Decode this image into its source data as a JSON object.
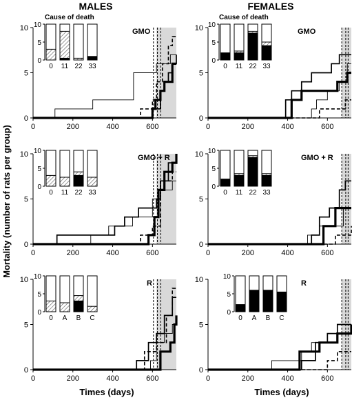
{
  "headers": {
    "males": "MALES",
    "females": "FEMALES"
  },
  "axis": {
    "ylabel": "Mortality (number of rats per group)",
    "xlabel": "Times (days)",
    "xticks": [
      "0",
      "200",
      "400",
      "600"
    ],
    "yticks": [
      "0",
      "5",
      "10"
    ],
    "xlim": [
      0,
      720
    ],
    "ylim": [
      0,
      10
    ]
  },
  "inset_axis": {
    "yticks": [
      "0",
      "5",
      "10"
    ],
    "ylim": [
      0,
      10
    ]
  },
  "chart_data": [
    {
      "id": "males-gmo",
      "type": "line",
      "title": "GMO",
      "inset_title": "Cause of death",
      "shaded_region": [
        620,
        720
      ],
      "vlines": [
        605,
        625,
        642
      ],
      "series": [
        {
          "style": "thin",
          "x": [
            0,
            110,
            300,
            505,
            600,
            620,
            640,
            690,
            720
          ],
          "y": [
            0,
            1,
            2,
            5,
            5,
            6,
            6,
            7,
            7
          ]
        },
        {
          "style": "medium",
          "x": [
            0,
            580,
            600,
            620,
            640,
            660,
            680,
            700,
            720
          ],
          "y": [
            0,
            0,
            1,
            1,
            3,
            4,
            5,
            6,
            7
          ]
        },
        {
          "style": "thick",
          "x": [
            0,
            560,
            600,
            615,
            640,
            660,
            700,
            720
          ],
          "y": [
            0,
            0,
            1,
            2,
            3,
            4,
            6,
            6
          ]
        },
        {
          "style": "dashed",
          "x": [
            0,
            510,
            540,
            600,
            620,
            650,
            680,
            700,
            720
          ],
          "y": [
            0,
            0,
            1,
            2,
            4,
            6,
            8,
            9,
            9
          ]
        }
      ],
      "inset": {
        "categories": [
          "0",
          "11",
          "22",
          "33"
        ],
        "bars": [
          {
            "total": 10,
            "hatched": 3,
            "black": 0
          },
          {
            "total": 10,
            "hatched": 7.5,
            "black": 0.5
          },
          {
            "total": 10,
            "hatched": 0.5,
            "black": 0
          },
          {
            "total": 10,
            "hatched": 0,
            "black": 1
          }
        ]
      }
    },
    {
      "id": "females-gmo",
      "type": "line",
      "title": "GMO",
      "inset_title": "Cause of death",
      "shaded_region": [
        672,
        720
      ],
      "vlines": [
        672,
        692,
        704
      ],
      "series": [
        {
          "style": "thin",
          "x": [
            0,
            520,
            545,
            600,
            660,
            700,
            720
          ],
          "y": [
            0,
            1,
            2,
            3,
            4,
            6,
            6
          ]
        },
        {
          "style": "medium",
          "x": [
            0,
            390,
            420,
            470,
            520,
            620,
            660,
            720
          ],
          "y": [
            0,
            2,
            3,
            4,
            5,
            6,
            7,
            7
          ]
        },
        {
          "style": "thick",
          "x": [
            0,
            390,
            420,
            470,
            600,
            650,
            700,
            720
          ],
          "y": [
            0,
            0,
            2,
            3,
            3,
            4,
            5,
            5
          ]
        },
        {
          "style": "dashed",
          "x": [
            0,
            540,
            560,
            690,
            720
          ],
          "y": [
            0,
            0,
            1,
            2,
            2
          ]
        }
      ],
      "inset": {
        "categories": [
          "0",
          "11",
          "22",
          "33"
        ],
        "bars": [
          {
            "total": 10,
            "hatched": 0,
            "black": 2
          },
          {
            "total": 10,
            "hatched": 0.5,
            "black": 2
          },
          {
            "total": 10,
            "hatched": 0.5,
            "black": 7.5
          },
          {
            "total": 10,
            "hatched": 1,
            "black": 4
          }
        ]
      }
    },
    {
      "id": "males-gmo-r",
      "type": "line",
      "title": "GMO + R",
      "shaded_region": [
        620,
        720
      ],
      "vlines": [
        605,
        625,
        642
      ],
      "series": [
        {
          "style": "thin",
          "x": [
            0,
            290,
            380,
            500,
            600,
            640,
            680,
            700,
            720
          ],
          "y": [
            0,
            1,
            2,
            3,
            5,
            6,
            6,
            7,
            7
          ]
        },
        {
          "style": "medium",
          "x": [
            0,
            120,
            410,
            460,
            530,
            600,
            620,
            640,
            680,
            720
          ],
          "y": [
            0,
            1,
            2,
            3,
            4,
            4,
            5,
            7,
            9,
            10
          ]
        },
        {
          "style": "thick",
          "x": [
            0,
            480,
            580,
            610,
            630,
            660,
            700,
            720
          ],
          "y": [
            0,
            0,
            1,
            3,
            6,
            8,
            9,
            10
          ]
        },
        {
          "style": "dashed",
          "x": [
            0,
            450,
            540,
            600,
            640,
            700,
            720
          ],
          "y": [
            0,
            0,
            1,
            2,
            7,
            8,
            8
          ]
        }
      ],
      "inset": {
        "categories": [
          "0",
          "11",
          "22",
          "33"
        ],
        "bars": [
          {
            "total": 10,
            "hatched": 3,
            "black": 0
          },
          {
            "total": 10,
            "hatched": 2.5,
            "black": 0
          },
          {
            "total": 10,
            "hatched": 1,
            "black": 3
          },
          {
            "total": 10,
            "hatched": 2.5,
            "black": 0
          }
        ]
      }
    },
    {
      "id": "females-gmo-r",
      "type": "line",
      "title": "GMO + R",
      "shaded_region": [
        672,
        720
      ],
      "vlines": [
        672,
        692,
        704
      ],
      "series": [
        {
          "style": "thin",
          "x": [
            0,
            500,
            560,
            600,
            680,
            720
          ],
          "y": [
            0,
            1,
            2,
            2,
            4,
            4
          ]
        },
        {
          "style": "medium",
          "x": [
            0,
            520,
            560,
            610,
            660,
            690,
            720
          ],
          "y": [
            0,
            1,
            3,
            4,
            6,
            7,
            7
          ]
        },
        {
          "style": "thick",
          "x": [
            0,
            540,
            580,
            640,
            720
          ],
          "y": [
            0,
            0,
            2,
            4,
            4
          ]
        },
        {
          "style": "dashed",
          "x": [
            0,
            600,
            640,
            720
          ],
          "y": [
            0,
            0,
            1,
            2
          ]
        }
      ],
      "inset": {
        "categories": [
          "0",
          "11",
          "22",
          "33"
        ],
        "bars": [
          {
            "total": 10,
            "hatched": 0,
            "black": 2
          },
          {
            "total": 10,
            "hatched": 0.5,
            "black": 3
          },
          {
            "total": 10,
            "hatched": 0.5,
            "black": 8
          },
          {
            "total": 10,
            "hatched": 0.5,
            "black": 3
          }
        ]
      }
    },
    {
      "id": "males-r",
      "type": "line",
      "title": "R",
      "shaded_region": [
        620,
        720
      ],
      "vlines": [
        605,
        625,
        642
      ],
      "series": [
        {
          "style": "thin",
          "x": [
            0,
            590,
            620,
            660,
            700,
            720
          ],
          "y": [
            0,
            1,
            3,
            4,
            5,
            5
          ]
        },
        {
          "style": "medium",
          "x": [
            0,
            520,
            580,
            620,
            660,
            700,
            720
          ],
          "y": [
            0,
            1,
            3,
            4,
            6,
            8,
            8
          ]
        },
        {
          "style": "thick",
          "x": [
            0,
            590,
            640,
            690,
            710,
            720
          ],
          "y": [
            0,
            0,
            2,
            3,
            5,
            6
          ]
        },
        {
          "style": "dashed",
          "x": [
            0,
            490,
            560,
            620,
            670,
            700,
            720
          ],
          "y": [
            0,
            0,
            2,
            3,
            6,
            9,
            9
          ]
        }
      ],
      "inset": {
        "categories": [
          "0",
          "A",
          "B",
          "C"
        ],
        "bars": [
          {
            "total": 10,
            "hatched": 3,
            "black": 0
          },
          {
            "total": 10,
            "hatched": 2.5,
            "black": 0
          },
          {
            "total": 10,
            "hatched": 1.5,
            "black": 3
          },
          {
            "total": 10,
            "hatched": 1.5,
            "black": 0
          }
        ]
      }
    },
    {
      "id": "females-r",
      "type": "line",
      "title": "R",
      "shaded_region": [
        672,
        720
      ],
      "vlines": [
        672,
        692,
        704
      ],
      "series": [
        {
          "style": "thin",
          "x": [
            0,
            320,
            470,
            520,
            600,
            650,
            700,
            720
          ],
          "y": [
            0,
            1,
            2,
            3,
            3,
            4,
            4,
            4
          ]
        },
        {
          "style": "medium",
          "x": [
            0,
            470,
            540,
            600,
            650,
            700,
            720
          ],
          "y": [
            0,
            1,
            3,
            4,
            5,
            5,
            5
          ]
        },
        {
          "style": "thick",
          "x": [
            0,
            460,
            490,
            560,
            600,
            650,
            720
          ],
          "y": [
            0,
            2,
            2,
            3,
            3,
            4,
            5
          ]
        },
        {
          "style": "dashed",
          "x": [
            0,
            540,
            600,
            650,
            720
          ],
          "y": [
            0,
            0,
            1,
            2,
            2
          ]
        }
      ],
      "inset": {
        "categories": [
          "0",
          "A",
          "B",
          "C"
        ],
        "bars": [
          {
            "total": 10,
            "hatched": 0,
            "black": 2
          },
          {
            "total": 10,
            "hatched": 0,
            "black": 6
          },
          {
            "total": 10,
            "hatched": 0,
            "black": 6
          },
          {
            "total": 10,
            "hatched": 0,
            "black": 5.5
          }
        ]
      }
    }
  ]
}
